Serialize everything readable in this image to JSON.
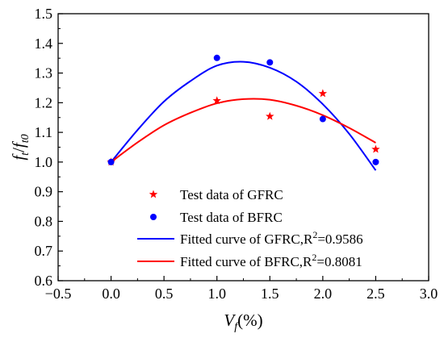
{
  "chart_data": {
    "type": "scatter",
    "xlabel": {
      "main": "V",
      "sub": "f",
      "suffix": "(%)"
    },
    "ylabel": {
      "main": "f",
      "sub1": "t",
      "sep": "/",
      "main2": "f",
      "sub2": "t0"
    },
    "xlim": [
      -0.5,
      3.0
    ],
    "ylim": [
      0.6,
      1.5
    ],
    "xticks": [
      -0.5,
      0.0,
      0.5,
      1.0,
      1.5,
      2.0,
      2.5,
      3.0
    ],
    "xtick_labels": [
      "−0.5",
      "0.0",
      "0.5",
      "1.0",
      "1.5",
      "2.0",
      "2.5",
      "3.0"
    ],
    "yticks": [
      0.6,
      0.7,
      0.8,
      0.9,
      1.0,
      1.1,
      1.2,
      1.3,
      1.4,
      1.5
    ],
    "ytick_labels": [
      "0.6",
      "0.7",
      "0.8",
      "0.9",
      "1.0",
      "1.1",
      "1.2",
      "1.3",
      "1.4",
      "1.5"
    ],
    "grid": false,
    "legend_position": "lower-right",
    "series": [
      {
        "name": "Test data of GFRC",
        "kind": "scatter",
        "marker": "star",
        "color": "#ff0000",
        "x": [
          0.0,
          1.0,
          1.5,
          2.0,
          2.5
        ],
        "y": [
          1.0,
          1.207,
          1.154,
          1.231,
          1.043
        ]
      },
      {
        "name": "Test data of BFRC",
        "kind": "scatter",
        "marker": "circle",
        "color": "#0000ff",
        "x": [
          0.0,
          1.0,
          1.5,
          2.0,
          2.5
        ],
        "y": [
          1.0,
          1.351,
          1.336,
          1.145,
          1.0
        ]
      },
      {
        "name_prefix": "Fitted curve of GFRC,R",
        "name_sup": "2",
        "name_suffix": "=0.9586",
        "kind": "curve",
        "color": "#0000ff",
        "x": [
          0.0,
          0.25,
          0.5,
          0.75,
          1.0,
          1.25,
          1.5,
          1.75,
          2.0,
          2.25,
          2.5
        ],
        "y": [
          1.0,
          1.108,
          1.204,
          1.273,
          1.325,
          1.338,
          1.318,
          1.271,
          1.195,
          1.095,
          0.972
        ]
      },
      {
        "name_prefix": "Fitted curve of BFRC,R",
        "name_sup": "2",
        "name_suffix": "=0.8081",
        "kind": "curve",
        "color": "#ff0000",
        "x": [
          0.0,
          0.25,
          0.5,
          0.75,
          1.0,
          1.25,
          1.5,
          1.75,
          2.0,
          2.25,
          2.5
        ],
        "y": [
          1.0,
          1.066,
          1.124,
          1.166,
          1.198,
          1.212,
          1.21,
          1.19,
          1.158,
          1.115,
          1.065
        ]
      }
    ]
  }
}
